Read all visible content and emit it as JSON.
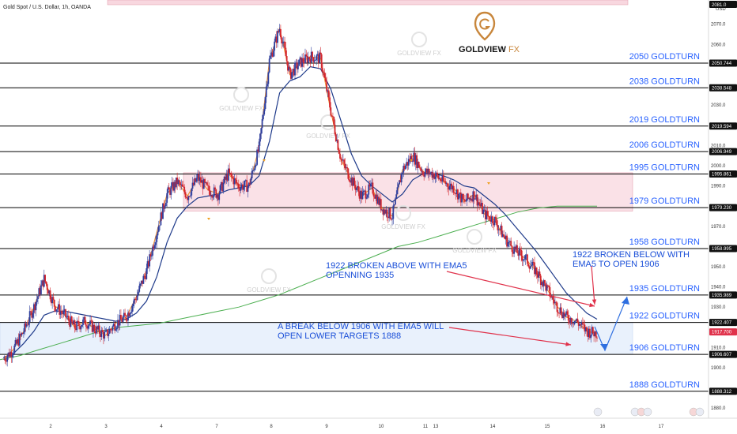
{
  "header": {
    "title": "Gold Spot / U.S. Dollar, 1h, OANDA",
    "currency": "USD"
  },
  "brand": {
    "logo_text": "GOLDVIEW",
    "logo_suffix": "FX",
    "accent": "#c8863b"
  },
  "colors": {
    "up": "#2f3f9e",
    "down": "#d3262d",
    "ema5": "#f28c28",
    "ema_mid": "#1e3a8a",
    "ema_long": "#4caf50",
    "level": "#000000",
    "label": "#2962ff",
    "zone_red": "#f8d7df",
    "zone_blue": "#e3edfb",
    "arrow_red": "#e0324b",
    "arrow_blue": "#2f6fe0"
  },
  "chart_data": {
    "type": "candlestick",
    "y_axis": {
      "ylim": [
        1875,
        2082
      ],
      "ticks": [
        1880,
        1890,
        1900,
        1910,
        1920,
        1930,
        1940,
        1950,
        1960,
        1970,
        1980,
        1990,
        2000,
        2010,
        2020,
        2030,
        2040,
        2050,
        2060,
        2070,
        2080
      ]
    },
    "x_axis": {
      "ticks": [
        "2",
        "3",
        "4",
        "7",
        "8",
        "9",
        "10",
        "11",
        "13",
        "14",
        "15",
        "16",
        "17"
      ]
    },
    "levels": [
      {
        "name": "2050 GOLDTURN",
        "value": 2050.744
      },
      {
        "name": "2038 GOLDTURN",
        "value": 2038.548
      },
      {
        "name": "2019 GOLDTURN",
        "value": 2019.594
      },
      {
        "name": "2006 GOLDTURN",
        "value": 2006.949
      },
      {
        "name": "1995 GOLDTURN",
        "value": 1995.861
      },
      {
        "name": "1979 GOLDTURN",
        "value": 1979.23
      },
      {
        "name": "1958 GOLDTURN",
        "value": 1958.995
      },
      {
        "name": "1935 GOLDTURN",
        "value": 1935.989
      },
      {
        "name": "1922 GOLDTURN",
        "value": 1922.407
      },
      {
        "name": "1906 GOLDTURN",
        "value": 1906.607
      },
      {
        "name": "1888 GOLDTURN",
        "value": 1888.312
      }
    ],
    "top_tag": "2081.0",
    "current_price": 1917.7,
    "zones": [
      {
        "kind": "red",
        "from": 1977.5,
        "to": 1996.5
      },
      {
        "kind": "blue",
        "from": 1906.6,
        "to": 1922.4
      }
    ],
    "price_path": [
      1904,
      1909,
      1918,
      1930,
      1944,
      1931,
      1926,
      1920,
      1923,
      1919,
      1916,
      1922,
      1925,
      1935,
      1948,
      1967,
      1986,
      1992,
      1985,
      1994,
      1988,
      1986,
      1996,
      1990,
      1990,
      2009,
      2052,
      2068,
      2045,
      2051,
      2054,
      2053,
      2027,
      2003,
      1993,
      1985,
      1989,
      1979,
      1975,
      1998,
      2005,
      1997,
      1996,
      1992,
      1989,
      1982,
      1986,
      1976,
      1973,
      1964,
      1958,
      1954,
      1948,
      1940,
      1931,
      1925,
      1923,
      1918,
      1917
    ],
    "ema_mid_path": [
      1905,
      1907,
      1912,
      1918,
      1926,
      1928,
      1928,
      1927,
      1926,
      1925,
      1924,
      1923,
      1924,
      1927,
      1933,
      1945,
      1962,
      1974,
      1980,
      1984,
      1985,
      1986,
      1988,
      1989,
      1990,
      1995,
      2012,
      2036,
      2042,
      2044,
      2049,
      2048,
      2038,
      2022,
      2006,
      1995,
      1990,
      1986,
      1982,
      1986,
      1993,
      1996,
      1996,
      1995,
      1993,
      1990,
      1989,
      1985,
      1981,
      1976,
      1970,
      1964,
      1958,
      1951,
      1944,
      1937,
      1932,
      1927,
      1924
    ],
    "ema_long_path": [
      1904,
      1906,
      1909,
      1912,
      1915,
      1918,
      1920,
      1921,
      1922,
      1924,
      1926,
      1928,
      1930,
      1933,
      1936,
      1940,
      1944,
      1948,
      1952,
      1956,
      1960,
      1962,
      1965,
      1968,
      1971,
      1974,
      1977,
      1979,
      1980,
      1980,
      1980
    ],
    "annotations": [
      {
        "id": "ema5-above",
        "lines": [
          "1922 BROKEN ABOVE WITH EMA5",
          "OPENNING 1935"
        ]
      },
      {
        "id": "ema5-below",
        "lines": [
          "1922 BROKEN BELOW WITH",
          "EMA5 TO OPEN 1906"
        ]
      },
      {
        "id": "break-1906",
        "lines": [
          "A BREAK BELOW 1906 WITH EMA5 WILL",
          "OPEN LOWER TARGETS 1888"
        ]
      }
    ]
  }
}
